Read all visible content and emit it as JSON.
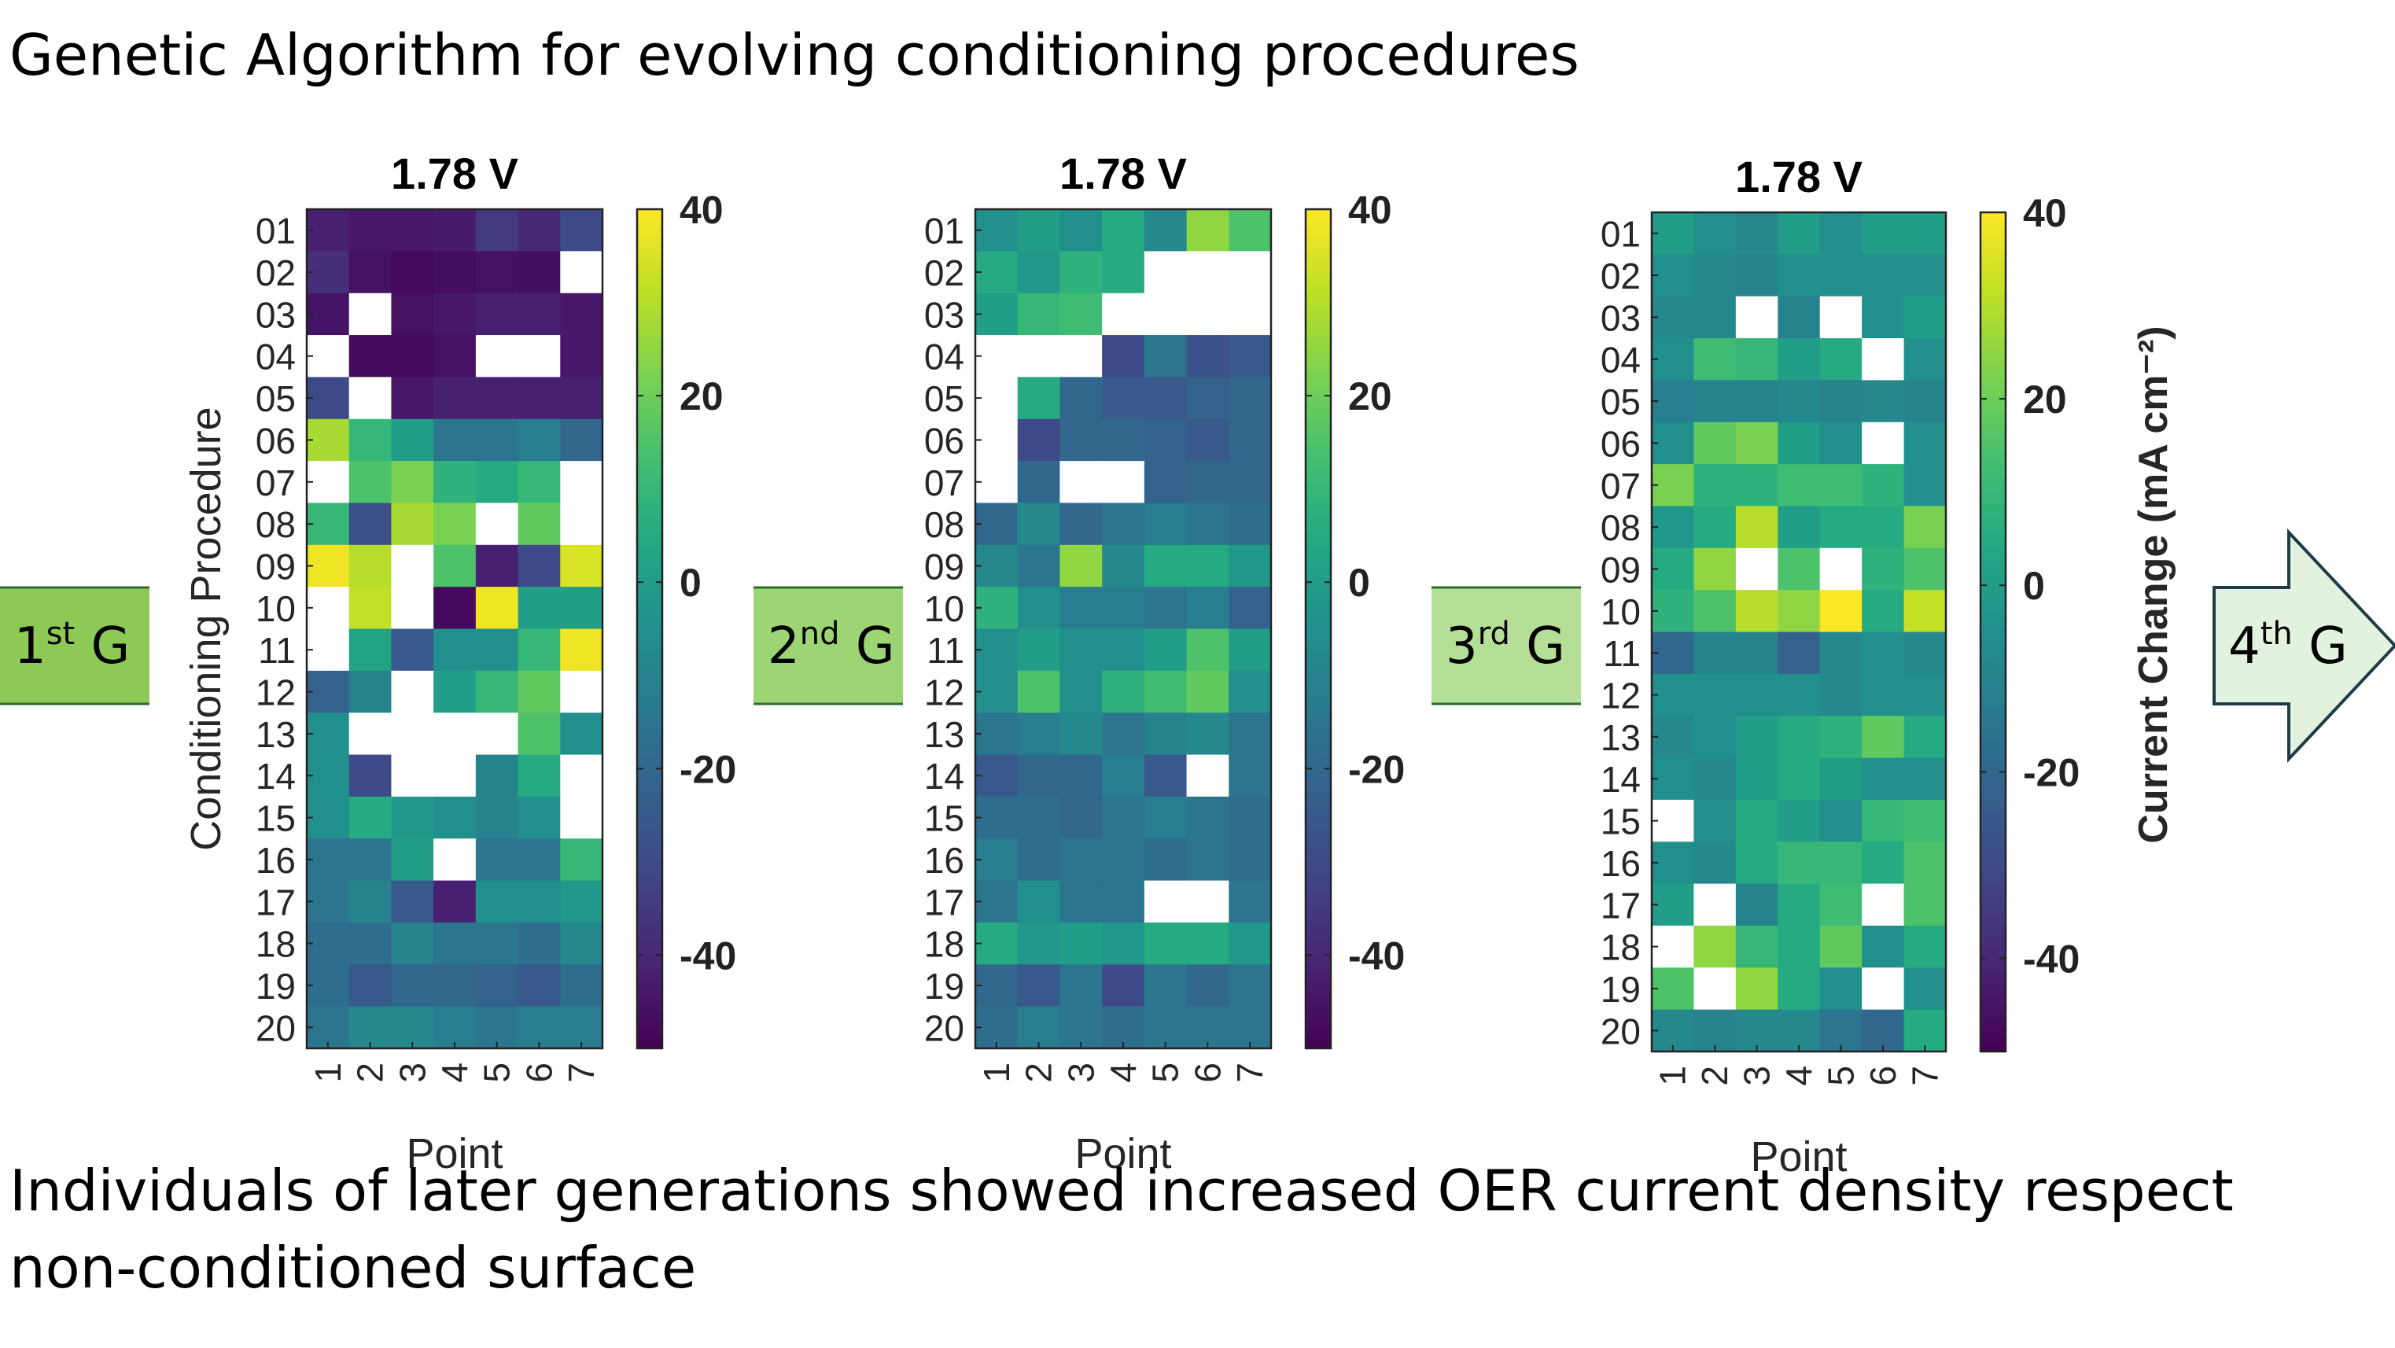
{
  "headline": "Genetic Algorithm for evolving conditioning procedures",
  "footer": {
    "line1": "Individuals of later generations showed increased OER current density respect",
    "line2": "non-conditioned surface"
  },
  "arrows": [
    {
      "base": "1",
      "sup": "st",
      "suffix": " G",
      "color": "#8dc955"
    },
    {
      "base": "2",
      "sup": "nd",
      "suffix": " G",
      "color": "#9dd474"
    },
    {
      "base": "3",
      "sup": "rd",
      "suffix": " G",
      "color": "#b5df96"
    },
    {
      "base": "4",
      "sup": "th",
      "suffix": " G",
      "color": "#e3f2de"
    }
  ],
  "colors": {
    "viridis": [
      "#440154",
      "#482475",
      "#414487",
      "#355f8d",
      "#2a788e",
      "#21908d",
      "#22a884",
      "#42be71",
      "#7ad151",
      "#bddf26",
      "#fde725"
    ],
    "arrow_outline": "#1f3a48"
  },
  "chart_data": [
    {
      "type": "heatmap",
      "title": "1.78 V",
      "xlabel": "Point",
      "ylabel": "Conditioning Procedure",
      "x": [
        "1",
        "2",
        "3",
        "4",
        "5",
        "6",
        "7"
      ],
      "y": [
        "01",
        "02",
        "03",
        "04",
        "05",
        "06",
        "07",
        "08",
        "09",
        "10",
        "11",
        "12",
        "13",
        "14",
        "15",
        "16",
        "17",
        "18",
        "19",
        "20"
      ],
      "clim": [
        -50,
        40
      ],
      "colorbar_ticks": [
        "40",
        "20",
        "0",
        "-20",
        "-40"
      ],
      "colorbar_label": "",
      "values": [
        [
          -42,
          -44,
          -44,
          -43,
          -35,
          -40,
          -30
        ],
        [
          -38,
          -46,
          -48,
          -47,
          -46,
          -47,
          null
        ],
        [
          -45,
          null,
          -46,
          -44,
          -42,
          -42,
          -44
        ],
        [
          null,
          -48,
          -48,
          -46,
          null,
          null,
          -44
        ],
        [
          -30,
          null,
          -44,
          -42,
          -42,
          -42,
          -42
        ],
        [
          28,
          10,
          0,
          -15,
          -15,
          -12,
          -20
        ],
        [
          null,
          15,
          22,
          8,
          5,
          10,
          null
        ],
        [
          10,
          -28,
          28,
          22,
          null,
          18,
          null
        ],
        [
          38,
          30,
          null,
          15,
          -42,
          -30,
          35
        ],
        [
          null,
          32,
          null,
          -48,
          38,
          0,
          0
        ],
        [
          null,
          2,
          -25,
          -5,
          -5,
          10,
          38
        ],
        [
          -22,
          -10,
          null,
          0,
          10,
          18,
          null
        ],
        [
          -5,
          null,
          null,
          null,
          null,
          15,
          -5
        ],
        [
          -5,
          -30,
          null,
          null,
          -10,
          5,
          null
        ],
        [
          -5,
          5,
          -2,
          -5,
          -10,
          -5,
          null
        ],
        [
          -15,
          -15,
          0,
          null,
          -15,
          -15,
          10
        ],
        [
          -15,
          -10,
          -25,
          -42,
          -5,
          -5,
          -2
        ],
        [
          -18,
          -18,
          -10,
          -15,
          -15,
          -18,
          -8
        ],
        [
          -18,
          -25,
          -20,
          -20,
          -22,
          -25,
          -18
        ],
        [
          -15,
          -8,
          -8,
          -12,
          -15,
          -12,
          -12
        ]
      ]
    },
    {
      "type": "heatmap",
      "title": "1.78 V",
      "xlabel": "Point",
      "ylabel": "",
      "x": [
        "1",
        "2",
        "3",
        "4",
        "5",
        "6",
        "7"
      ],
      "y": [
        "01",
        "02",
        "03",
        "04",
        "05",
        "06",
        "07",
        "08",
        "09",
        "10",
        "11",
        "12",
        "13",
        "14",
        "15",
        "16",
        "17",
        "18",
        "19",
        "20"
      ],
      "clim": [
        -50,
        40
      ],
      "colorbar_ticks": [
        "40",
        "20",
        "0",
        "-20",
        "-40"
      ],
      "colorbar_label": "",
      "values": [
        [
          -5,
          0,
          -5,
          5,
          -8,
          25,
          15
        ],
        [
          5,
          -2,
          8,
          5,
          null,
          null,
          null
        ],
        [
          0,
          10,
          12,
          null,
          null,
          null,
          null
        ],
        [
          null,
          null,
          null,
          -30,
          -15,
          -28,
          -25
        ],
        [
          null,
          5,
          -20,
          -25,
          -25,
          -22,
          -20
        ],
        [
          null,
          -30,
          -20,
          -20,
          -22,
          -25,
          -20
        ],
        [
          null,
          -20,
          null,
          null,
          -22,
          -20,
          -20
        ],
        [
          -20,
          -8,
          -20,
          -15,
          -12,
          -15,
          -18
        ],
        [
          -8,
          -15,
          25,
          -8,
          5,
          5,
          -2
        ],
        [
          8,
          -5,
          -12,
          -12,
          -15,
          -12,
          -22
        ],
        [
          -5,
          0,
          -5,
          -5,
          0,
          15,
          0
        ],
        [
          -5,
          15,
          -5,
          8,
          12,
          18,
          -5
        ],
        [
          -15,
          -12,
          -8,
          -15,
          -10,
          -8,
          -15
        ],
        [
          -25,
          -20,
          -20,
          -12,
          -25,
          null,
          -15
        ],
        [
          -18,
          -18,
          -20,
          -15,
          -12,
          -15,
          -18
        ],
        [
          -12,
          -18,
          -15,
          -15,
          -18,
          -15,
          -18
        ],
        [
          -15,
          -5,
          -15,
          -15,
          null,
          null,
          -15
        ],
        [
          5,
          -2,
          0,
          -2,
          5,
          5,
          -2
        ],
        [
          -20,
          -25,
          -15,
          -30,
          -15,
          -20,
          -15
        ],
        [
          -18,
          -12,
          -15,
          -18,
          -15,
          -15,
          -15
        ]
      ]
    },
    {
      "type": "heatmap",
      "title": "1.78 V",
      "xlabel": "Point",
      "ylabel": "",
      "x": [
        "1",
        "2",
        "3",
        "4",
        "5",
        "6",
        "7"
      ],
      "y": [
        "01",
        "02",
        "03",
        "04",
        "05",
        "06",
        "07",
        "08",
        "09",
        "10",
        "11",
        "12",
        "13",
        "14",
        "15",
        "16",
        "17",
        "18",
        "19",
        "20"
      ],
      "clim": [
        -50,
        40
      ],
      "colorbar_ticks": [
        "40",
        "20",
        "0",
        "-20",
        "-40"
      ],
      "colorbar_label": "Current Change (mA cm⁻²)",
      "values": [
        [
          0,
          -5,
          -8,
          0,
          -5,
          0,
          0
        ],
        [
          -5,
          -8,
          -10,
          -5,
          -5,
          -5,
          -5
        ],
        [
          -8,
          -8,
          null,
          -10,
          null,
          -5,
          0
        ],
        [
          -5,
          12,
          10,
          0,
          5,
          null,
          -5
        ],
        [
          -12,
          -10,
          -10,
          -8,
          -10,
          -8,
          -10
        ],
        [
          -5,
          18,
          22,
          0,
          -5,
          null,
          -5
        ],
        [
          22,
          8,
          8,
          12,
          12,
          8,
          -5
        ],
        [
          -2,
          5,
          30,
          0,
          5,
          5,
          22
        ],
        [
          5,
          25,
          null,
          15,
          null,
          8,
          15
        ],
        [
          8,
          15,
          30,
          25,
          40,
          5,
          32
        ],
        [
          -20,
          -10,
          -10,
          -22,
          -8,
          -5,
          -8
        ],
        [
          -5,
          -5,
          -5,
          -5,
          -8,
          -5,
          -5
        ],
        [
          -8,
          -5,
          0,
          5,
          8,
          18,
          5
        ],
        [
          -5,
          -8,
          0,
          5,
          0,
          -5,
          -5
        ],
        [
          null,
          -5,
          5,
          0,
          -5,
          10,
          12
        ],
        [
          -5,
          -8,
          5,
          10,
          10,
          5,
          15
        ],
        [
          0,
          null,
          -10,
          5,
          12,
          null,
          15
        ],
        [
          null,
          25,
          10,
          5,
          18,
          -5,
          5
        ],
        [
          15,
          null,
          25,
          5,
          -5,
          null,
          -5
        ],
        [
          -8,
          -10,
          -8,
          -8,
          -15,
          -20,
          5
        ]
      ]
    }
  ]
}
